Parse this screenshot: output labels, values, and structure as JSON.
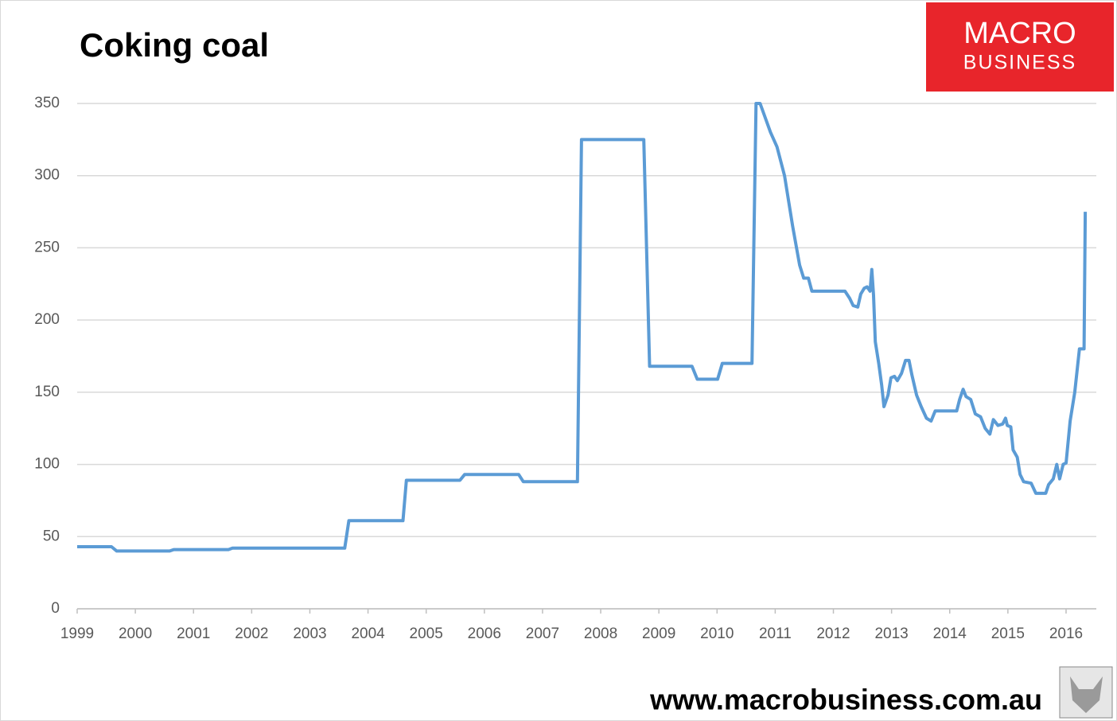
{
  "chart_data": {
    "type": "line",
    "title": "Coking coal",
    "logo": [
      "MACRO",
      "BUSINESS"
    ],
    "source": "www.macrobusiness.com.au",
    "color": "#5b9bd5",
    "grid": true,
    "xlim": [
      1999,
      2016.52
    ],
    "xticks": [
      1999,
      2000,
      2001,
      2002,
      2003,
      2004,
      2005,
      2006,
      2007,
      2008,
      2009,
      2010,
      2011,
      2012,
      2013,
      2014,
      2015,
      2016
    ],
    "ylim": [
      0,
      350
    ],
    "yticks": [
      0,
      50,
      100,
      150,
      200,
      250,
      300,
      350
    ],
    "x": [
      1999.0,
      1999.59,
      1999.68,
      2000.59,
      2000.66,
      2001.6,
      2001.67,
      2003.6,
      2003.67,
      2004.6,
      2004.66,
      2005.58,
      2005.66,
      2006.59,
      2006.67,
      2007.6,
      2007.67,
      2008.74,
      2008.84,
      2009.57,
      2009.66,
      2010.01,
      2010.09,
      2010.6,
      2010.67,
      2010.74,
      2010.92,
      2011.03,
      2011.16,
      2011.3,
      2011.42,
      2011.49,
      2011.57,
      2011.63,
      2012.2,
      2012.28,
      2012.34,
      2012.42,
      2012.47,
      2012.53,
      2012.58,
      2012.63,
      2012.66,
      2012.69,
      2012.72,
      2012.78,
      2012.83,
      2012.87,
      2012.94,
      2012.99,
      2013.05,
      2013.1,
      2013.17,
      2013.24,
      2013.3,
      2013.35,
      2013.43,
      2013.51,
      2013.6,
      2013.68,
      2013.75,
      2014.12,
      2014.17,
      2014.23,
      2014.28,
      2014.36,
      2014.44,
      2014.53,
      2014.61,
      2014.69,
      2014.75,
      2014.83,
      2014.91,
      2014.96,
      2014.99,
      2015.05,
      2015.09,
      2015.16,
      2015.21,
      2015.27,
      2015.4,
      2015.48,
      2015.65,
      2015.7,
      2015.78,
      2015.84,
      2015.89,
      2015.95,
      2016.0,
      2016.07,
      2016.15,
      2016.23,
      2016.31,
      2016.33
    ],
    "values": [
      43,
      43,
      40,
      40,
      41,
      41,
      42,
      42,
      61,
      61,
      89,
      89,
      93,
      93,
      88,
      88,
      325,
      325,
      168,
      168,
      159,
      159,
      170,
      170,
      350,
      350,
      330,
      320,
      300,
      265,
      238,
      229,
      229,
      220,
      220,
      215,
      210,
      209,
      218,
      222,
      223,
      220,
      235,
      217,
      185,
      170,
      155,
      140,
      148,
      160,
      161,
      158,
      163,
      172,
      172,
      162,
      148,
      140,
      132,
      130,
      137,
      137,
      145,
      152,
      147,
      145,
      135,
      133,
      125,
      121,
      131,
      127,
      128,
      132,
      127,
      126,
      110,
      105,
      93,
      88,
      87,
      80,
      80,
      86,
      90,
      100,
      90,
      100,
      101,
      130,
      150,
      180,
      180,
      275
    ]
  }
}
